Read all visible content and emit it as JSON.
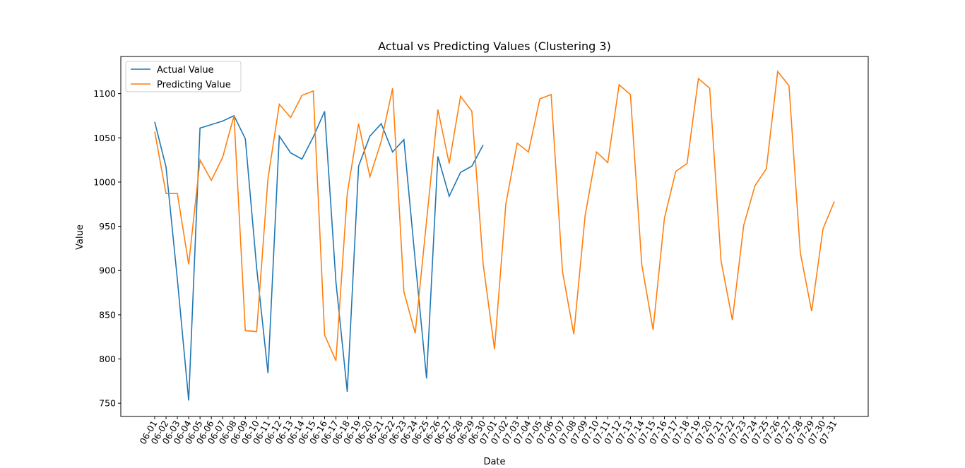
{
  "chart_data": {
    "type": "line",
    "title": "Actual vs Predicting Values (Clustering 3)",
    "x_label": "Date",
    "y_label": "Value",
    "categories": [
      "06-01",
      "06-02",
      "06-03",
      "06-04",
      "06-05",
      "06-06",
      "06-07",
      "06-08",
      "06-09",
      "06-10",
      "06-11",
      "06-12",
      "06-13",
      "06-14",
      "06-15",
      "06-16",
      "06-17",
      "06-18",
      "06-19",
      "06-20",
      "06-21",
      "06-22",
      "06-23",
      "06-24",
      "06-25",
      "06-26",
      "06-27",
      "06-28",
      "06-29",
      "06-30",
      "07-01",
      "07-02",
      "07-03",
      "07-04",
      "07-05",
      "07-06",
      "07-07",
      "07-08",
      "07-09",
      "07-10",
      "07-11",
      "07-12",
      "07-13",
      "07-14",
      "07-15",
      "07-16",
      "07-17",
      "07-18",
      "07-19",
      "07-20",
      "07-21",
      "07-22",
      "07-23",
      "07-24",
      "07-25",
      "07-26",
      "07-27",
      "07-28",
      "07-29",
      "07-30",
      "07-31"
    ],
    "series": [
      {
        "name": "Actual Value",
        "color": "#1f77b4",
        "values": [
          1068,
          1017,
          890,
          753,
          1061,
          1065,
          1069,
          1075,
          1049,
          903,
          784,
          1052,
          1033,
          1026,
          1051,
          1080,
          887,
          763,
          1018,
          1052,
          1066,
          1034,
          1048,
          911,
          778,
          1029,
          984,
          1011,
          1018,
          1042,
          null,
          null,
          null,
          null,
          null,
          null,
          null,
          null,
          null,
          null,
          null,
          null,
          null,
          null,
          null,
          null,
          null,
          null,
          null,
          null,
          null,
          null,
          null,
          null,
          null,
          null,
          null,
          null,
          null,
          null,
          null
        ]
      },
      {
        "name": "Predicting Value",
        "color": "#ff7f0e",
        "values": [
          1057,
          987,
          987,
          907,
          1025,
          1002,
          1028,
          1075,
          832,
          831,
          1004,
          1088,
          1073,
          1098,
          1103,
          827,
          798,
          987,
          1066,
          1006,
          1046,
          1106,
          876,
          829,
          956,
          1082,
          1021,
          1097,
          1080,
          907,
          811,
          975,
          1044,
          1034,
          1094,
          1099,
          899,
          828,
          962,
          1034,
          1022,
          1110,
          1099,
          907,
          833,
          959,
          1012,
          1021,
          1117,
          1106,
          911,
          844,
          951,
          996,
          1015,
          1125,
          1109,
          920,
          854,
          947,
          978
        ]
      }
    ],
    "ylim": [
      735,
      1142
    ],
    "yticks": [
      750,
      800,
      850,
      900,
      950,
      1000,
      1050,
      1100
    ],
    "legend": "upper left"
  }
}
